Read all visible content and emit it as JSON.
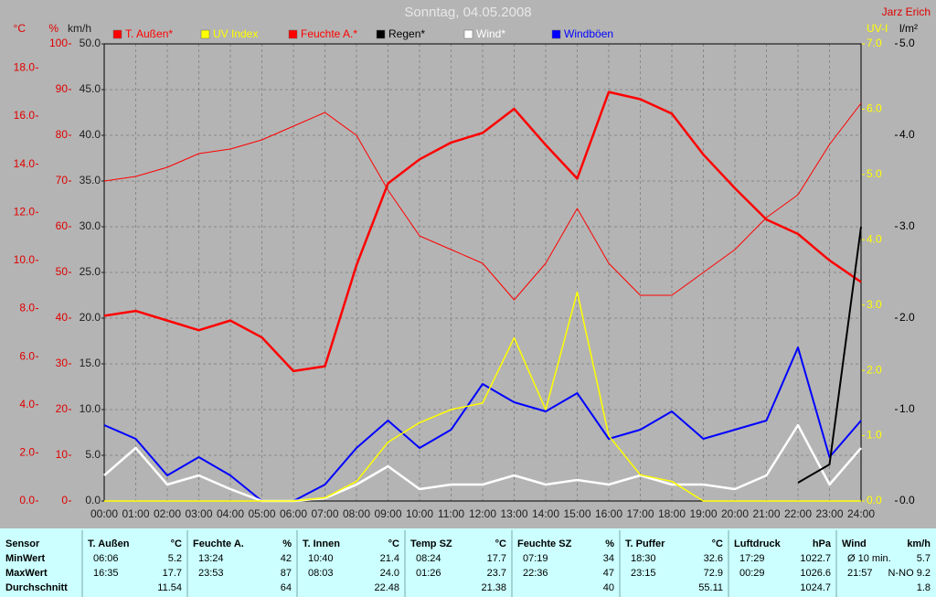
{
  "chart_data": {
    "type": "line",
    "title": "Sonntag, 04.05.2008",
    "subtitle": "Jarz Erich",
    "grid": true,
    "x": [
      "00:00",
      "01:00",
      "02:00",
      "03:00",
      "04:00",
      "05:00",
      "06:00",
      "07:00",
      "08:00",
      "09:00",
      "10:00",
      "11:00",
      "12:00",
      "13:00",
      "14:00",
      "15:00",
      "16:00",
      "17:00",
      "18:00",
      "19:00",
      "20:00",
      "21:00",
      "22:00",
      "23:00",
      "24:00"
    ],
    "axes": [
      {
        "label": "°C",
        "color": "#e00000",
        "side": "left",
        "ylim": [
          0,
          19
        ],
        "yticks": [
          {
            "value": 0,
            "label": "0.0"
          },
          {
            "value": 2,
            "label": "2.0"
          },
          {
            "value": 4,
            "label": "4.0"
          },
          {
            "value": 6,
            "label": "6.0"
          },
          {
            "value": 8,
            "label": "8.0"
          },
          {
            "value": 10,
            "label": "10.0"
          },
          {
            "value": 12,
            "label": "12.0"
          },
          {
            "value": 14,
            "label": "14.0"
          },
          {
            "value": 16,
            "label": "16.0"
          },
          {
            "value": 18,
            "label": "18.0"
          }
        ]
      },
      {
        "label": "%",
        "color": "#e00000",
        "side": "left",
        "ylim": [
          0,
          100
        ],
        "yticks": [
          0,
          10,
          20,
          30,
          40,
          50,
          60,
          70,
          80,
          90,
          100
        ]
      },
      {
        "label": "km/h",
        "color": "#202020",
        "side": "left",
        "ylim": [
          0,
          50
        ],
        "yticks": [
          {
            "value": 0,
            "label": "0.0"
          },
          {
            "value": 5,
            "label": "5.0"
          },
          {
            "value": 10,
            "label": "10.0"
          },
          {
            "value": 15,
            "label": "15.0"
          },
          {
            "value": 20,
            "label": "20.0"
          },
          {
            "value": 25,
            "label": "25.0"
          },
          {
            "value": 30,
            "label": "30.0"
          },
          {
            "value": 35,
            "label": "35.0"
          },
          {
            "value": 40,
            "label": "40.0"
          },
          {
            "value": 45,
            "label": "45.0"
          },
          {
            "value": 50,
            "label": "50.0"
          }
        ]
      },
      {
        "label": "UV-I",
        "color": "#ffff00",
        "side": "right",
        "ylim": [
          0,
          7
        ],
        "yticks": [
          {
            "value": 0,
            "label": "0.0"
          },
          {
            "value": 1,
            "label": "1.0"
          },
          {
            "value": 2,
            "label": "2.0"
          },
          {
            "value": 3,
            "label": "3.0"
          },
          {
            "value": 4,
            "label": "4.0"
          },
          {
            "value": 5,
            "label": "5.0"
          },
          {
            "value": 6,
            "label": "6.0"
          },
          {
            "value": 7,
            "label": "7.0"
          }
        ]
      },
      {
        "label": "l/m²",
        "color": "#000000",
        "side": "right",
        "ylim": [
          0,
          5
        ],
        "yticks": [
          {
            "value": 0,
            "label": "0.0"
          },
          {
            "value": 1,
            "label": "1.0"
          },
          {
            "value": 2,
            "label": "2.0"
          },
          {
            "value": 3,
            "label": "3.0"
          },
          {
            "value": 4,
            "label": "4.0"
          },
          {
            "value": 5,
            "label": "5.0"
          }
        ]
      }
    ],
    "series": [
      {
        "name": "T. Außen*",
        "color": "#ff0000",
        "axis": 0,
        "width": 2.5,
        "values": [
          7.7,
          7.9,
          7.5,
          7.1,
          7.5,
          6.8,
          5.4,
          5.6,
          9.8,
          13.2,
          14.2,
          14.9,
          15.3,
          16.3,
          14.8,
          13.4,
          17.0,
          16.7,
          16.1,
          14.4,
          13.0,
          11.7,
          11.1,
          10.0,
          9.1
        ]
      },
      {
        "name": "UV Index",
        "color": "#ffff00",
        "axis": 3,
        "width": 1.5,
        "values": [
          0,
          0,
          0,
          0,
          0,
          0,
          0,
          0.05,
          0.3,
          0.9,
          1.2,
          1.4,
          1.5,
          2.5,
          1.4,
          3.2,
          1.0,
          0.4,
          0.3,
          0,
          0,
          0,
          0,
          0,
          0
        ]
      },
      {
        "name": "Feuchte A.*",
        "color": "#ff0000",
        "axis": 1,
        "width": 1,
        "values": [
          70,
          71,
          73,
          76,
          77,
          79,
          82,
          85,
          80,
          68,
          58,
          55,
          52,
          44,
          52,
          64,
          52,
          45,
          45,
          50,
          55,
          62,
          67,
          78,
          87
        ]
      },
      {
        "name": "Regen*",
        "color": "#000000",
        "axis": 4,
        "width": 2,
        "values": [
          null,
          null,
          null,
          null,
          null,
          null,
          null,
          null,
          null,
          null,
          null,
          null,
          null,
          null,
          null,
          null,
          null,
          null,
          null,
          null,
          null,
          null,
          0.2,
          0.4,
          3.0
        ]
      },
      {
        "name": "Wind*",
        "color": "#ffffff",
        "axis": 2,
        "width": 2.5,
        "values": [
          2.8,
          5.8,
          1.8,
          2.8,
          1.3,
          0,
          0,
          0.3,
          1.8,
          3.8,
          1.3,
          1.8,
          1.8,
          2.8,
          1.8,
          2.3,
          1.8,
          2.8,
          1.8,
          1.8,
          1.3,
          2.8,
          8.3,
          1.8,
          5.8
        ]
      },
      {
        "name": "Windböen",
        "color": "#0000ff",
        "axis": 2,
        "width": 2,
        "values": [
          8.3,
          6.8,
          2.8,
          4.8,
          2.8,
          0,
          0,
          1.8,
          5.8,
          8.8,
          5.8,
          7.8,
          12.8,
          10.8,
          9.8,
          11.8,
          6.8,
          7.8,
          9.8,
          6.8,
          7.8,
          8.8,
          16.8,
          4.8,
          8.8
        ]
      }
    ]
  },
  "table": {
    "row_labels": [
      "Sensor",
      "MinWert",
      "MaxWert",
      "Durchschnitt"
    ],
    "groups": [
      {
        "name": "T. Außen",
        "unit": "°C",
        "min_time": "06:06",
        "min": "5.2",
        "max_time": "16:35",
        "max": "17.7",
        "avg": "11.54"
      },
      {
        "name": "Feuchte A.",
        "unit": "%",
        "min_time": "13:24",
        "min": "42",
        "max_time": "23:53",
        "max": "87",
        "avg": "64"
      },
      {
        "name": "T. Innen",
        "unit": "°C",
        "min_time": "10:40",
        "min": "21.4",
        "max_time": "08:03",
        "max": "24.0",
        "avg": "22.48"
      },
      {
        "name": "Temp SZ",
        "unit": "°C",
        "min_time": "08:24",
        "min": "17.7",
        "max_time": "01:26",
        "max": "23.7",
        "avg": "21.38"
      },
      {
        "name": "Feuchte SZ",
        "unit": "%",
        "min_time": "07:19",
        "min": "34",
        "max_time": "22:36",
        "max": "47",
        "avg": "40"
      },
      {
        "name": "T. Puffer",
        "unit": "°C",
        "min_time": "18:30",
        "min": "32.6",
        "max_time": "23:15",
        "max": "72.9",
        "avg": "55.11"
      },
      {
        "name": "Luftdruck",
        "unit": "hPa",
        "min_time": "17:29",
        "min": "1022.7",
        "max_time": "00:29",
        "max": "1026.6",
        "avg": "1024.7"
      },
      {
        "name": "Wind",
        "unit": "km/h",
        "min_time": "Ø 10 min.",
        "min": "5.7",
        "max_time": "21:57",
        "max": "N-NO 9.2",
        "avg": "1.8"
      }
    ]
  }
}
